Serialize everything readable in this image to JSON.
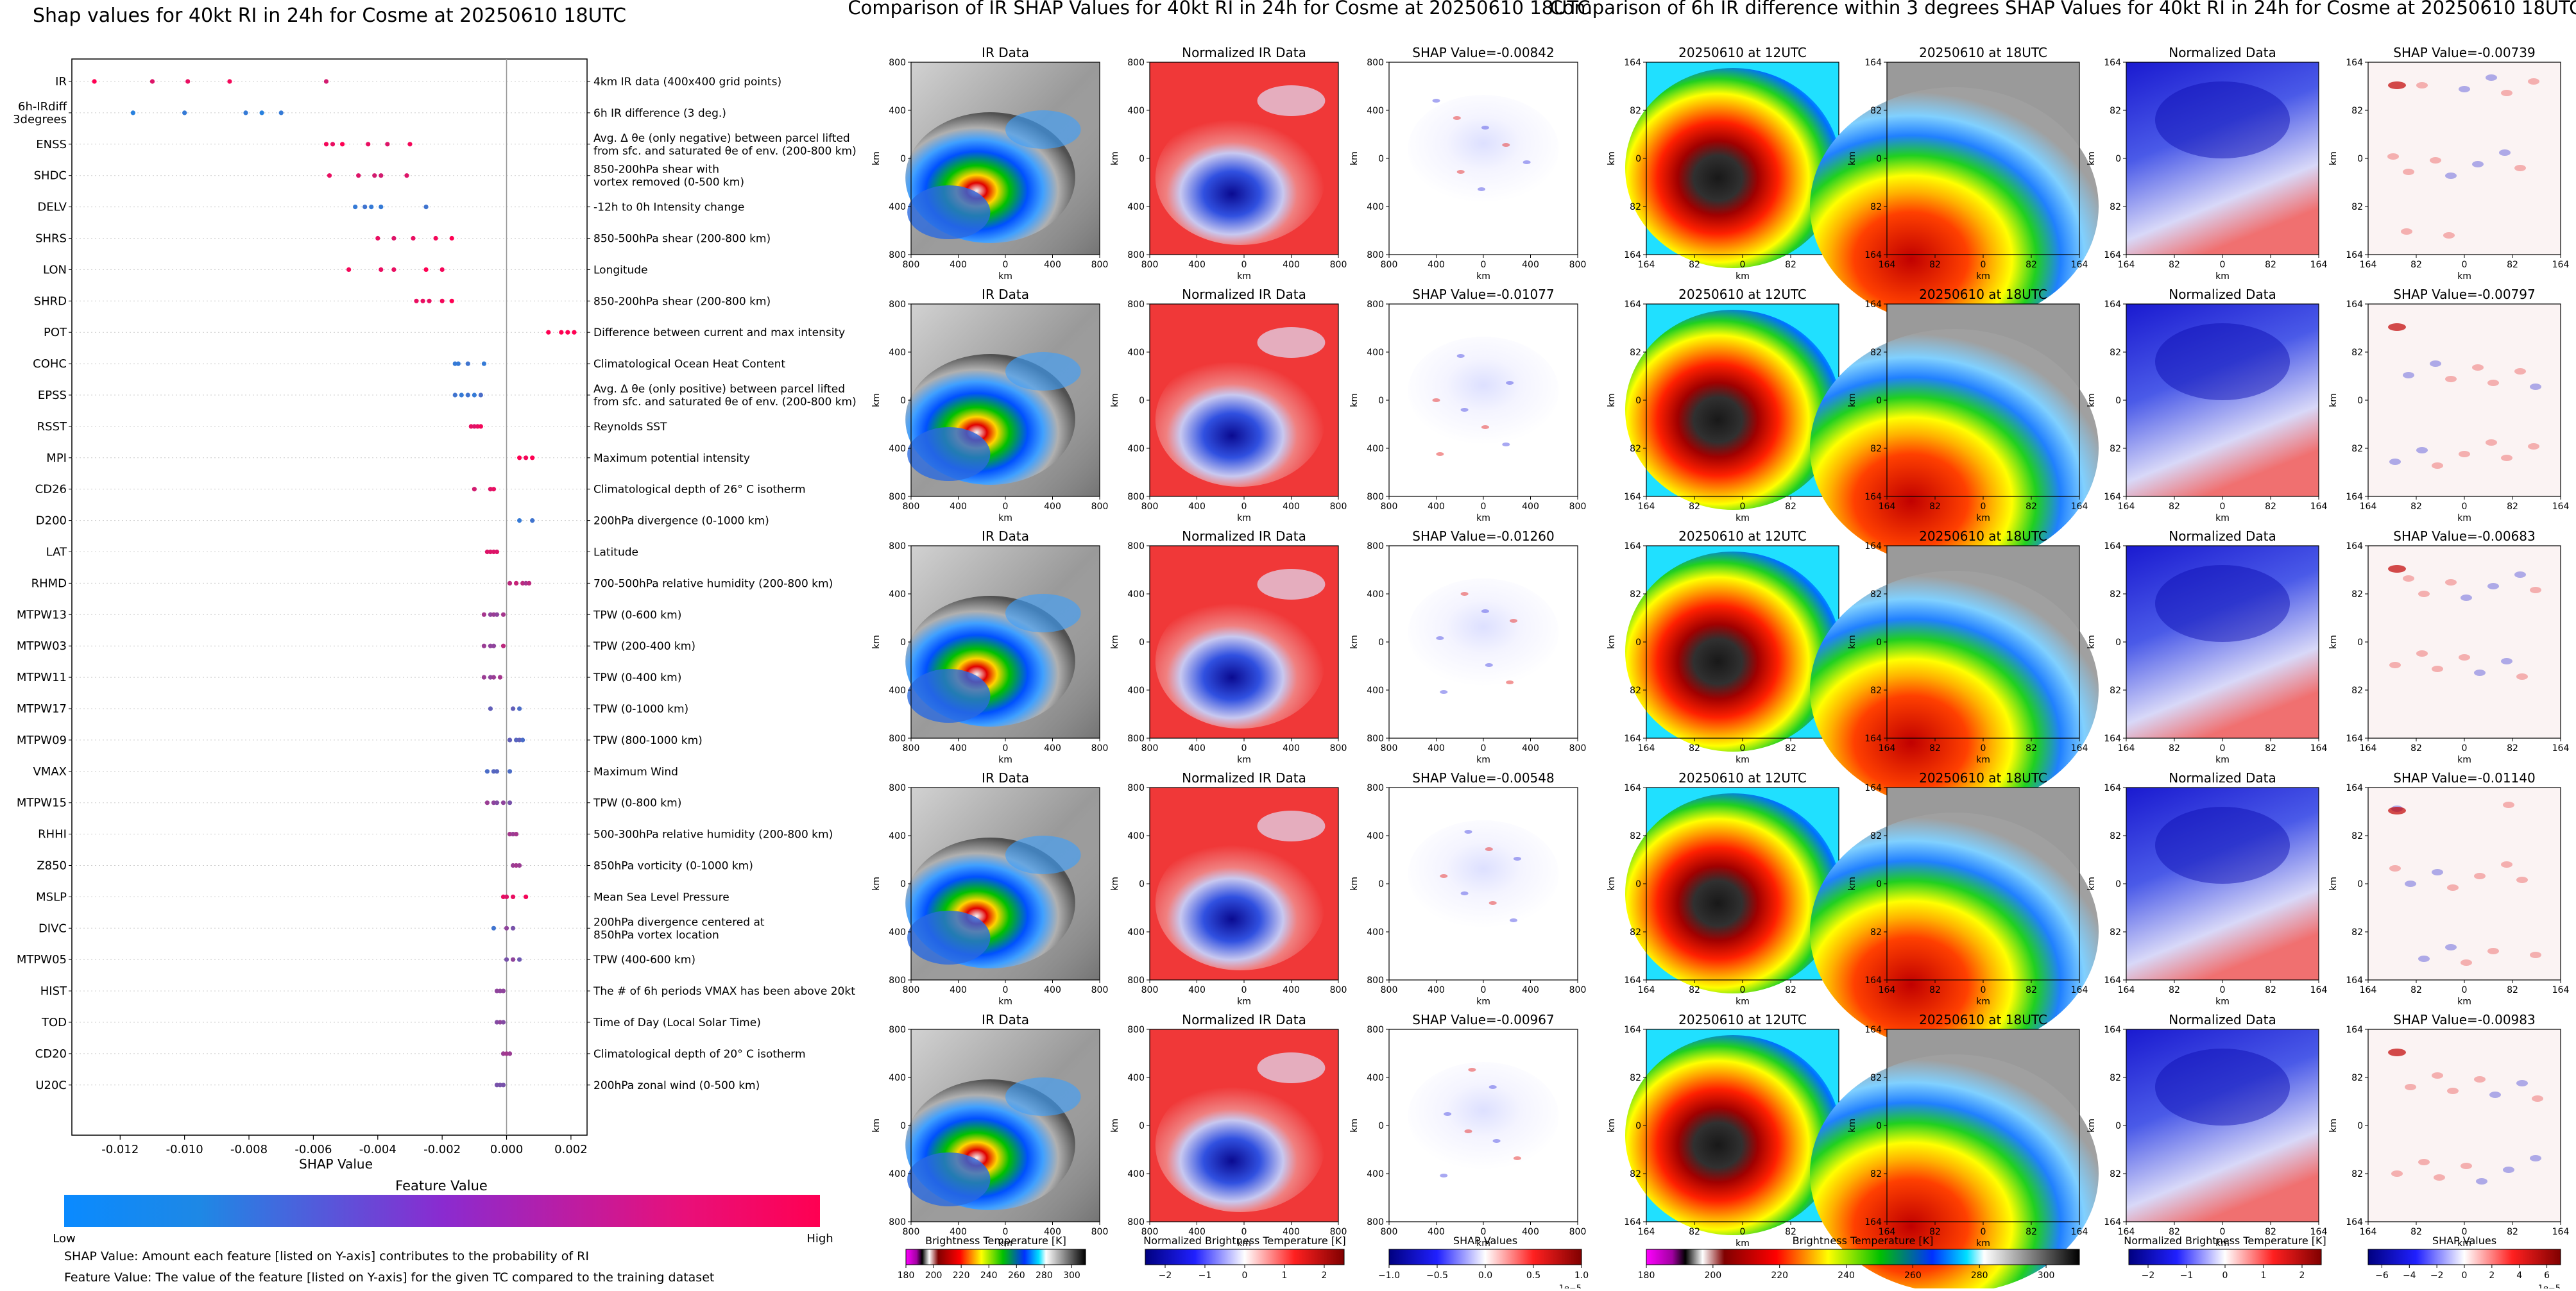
{
  "colors": {
    "shap_low": "#1e88e5",
    "shap_high": "#ff0052",
    "colorbar_feature": [
      "#1e88e5",
      "#7b2fd0",
      "#ff0052"
    ]
  },
  "shap_panel": {
    "title": "Shap values for 40kt RI in 24h for Cosme at 20250610 18UTC",
    "xlabel": "SHAP Value",
    "xticks": [
      "-0.012",
      "-0.010",
      "-0.008",
      "-0.006",
      "-0.004",
      "-0.002",
      "0.000",
      "0.002"
    ],
    "colorbar_title": "Feature Value",
    "colorbar_low": "Low",
    "colorbar_high": "High",
    "footnote1": "SHAP Value: Amount each feature [listed on Y-axis] contributes to the probability of RI",
    "footnote2": "Feature Value: The value of the feature [listed on Y-axis] for the given TC compared to the training dataset"
  },
  "chart_data": [
    {
      "type": "scatter",
      "title": "Shap values for 40kt RI in 24h for Cosme at 20250610 18UTC",
      "xlabel": "SHAP Value",
      "xlim": [
        -0.0135,
        0.0025
      ],
      "features": [
        {
          "name": "IR",
          "desc": "4km IR data (400x400 grid points)",
          "pts": [
            [
              -0.0128,
              1
            ],
            [
              -0.011,
              0.85
            ],
            [
              -0.0099,
              0.9
            ],
            [
              -0.0086,
              0.95
            ],
            [
              -0.0056,
              0.8
            ]
          ]
        },
        {
          "name": "6h-IRdiff\n3degrees",
          "desc": "6h IR difference (3 deg.)",
          "pts": [
            [
              -0.0116,
              0.05
            ],
            [
              -0.01,
              0.1
            ],
            [
              -0.0081,
              0.1
            ],
            [
              -0.0076,
              0.05
            ],
            [
              -0.007,
              0.1
            ]
          ]
        },
        {
          "name": "ENSS",
          "desc": "Avg. Δ θe (only negative) between parcel lifted\nfrom sfc. and saturated θe of env. (200-800 km)",
          "pts": [
            [
              -0.0056,
              0.95
            ],
            [
              -0.0054,
              0.9
            ],
            [
              -0.0051,
              1
            ],
            [
              -0.0043,
              0.9
            ],
            [
              -0.0037,
              0.85
            ],
            [
              -0.003,
              0.95
            ]
          ]
        },
        {
          "name": "SHDC",
          "desc": "850-200hPa shear with\nvortex removed (0-500 km)",
          "pts": [
            [
              -0.0055,
              0.9
            ],
            [
              -0.0046,
              0.85
            ],
            [
              -0.0041,
              0.8
            ],
            [
              -0.0039,
              0.8
            ],
            [
              -0.0031,
              0.85
            ]
          ]
        },
        {
          "name": "DELV",
          "desc": "-12h to 0h Intensity change",
          "pts": [
            [
              -0.0047,
              0.1
            ],
            [
              -0.0044,
              0.15
            ],
            [
              -0.0042,
              0.1
            ],
            [
              -0.0039,
              0.1
            ],
            [
              -0.0025,
              0.15
            ]
          ]
        },
        {
          "name": "SHRS",
          "desc": "850-500hPa shear (200-800 km)",
          "pts": [
            [
              -0.004,
              0.9
            ],
            [
              -0.0035,
              0.85
            ],
            [
              -0.0029,
              0.9
            ],
            [
              -0.0022,
              0.95
            ],
            [
              -0.0017,
              1
            ]
          ]
        },
        {
          "name": "LON",
          "desc": "Longitude",
          "pts": [
            [
              -0.0049,
              0.95
            ],
            [
              -0.0039,
              0.9
            ],
            [
              -0.0035,
              0.9
            ],
            [
              -0.0025,
              1
            ],
            [
              -0.002,
              0.95
            ]
          ]
        },
        {
          "name": "SHRD",
          "desc": "850-200hPa shear (200-800 km)",
          "pts": [
            [
              -0.0028,
              0.9
            ],
            [
              -0.0026,
              0.9
            ],
            [
              -0.0024,
              0.9
            ],
            [
              -0.002,
              0.95
            ],
            [
              -0.0017,
              1
            ]
          ]
        },
        {
          "name": "POT",
          "desc": "Difference between current and max intensity",
          "pts": [
            [
              0.0013,
              1
            ],
            [
              0.0017,
              1
            ],
            [
              0.0019,
              1
            ],
            [
              0.0021,
              1
            ]
          ]
        },
        {
          "name": "COHC",
          "desc": "Climatological Ocean Heat Content",
          "pts": [
            [
              -0.0016,
              0.1
            ],
            [
              -0.0015,
              0.1
            ],
            [
              -0.0012,
              0.15
            ],
            [
              -0.0007,
              0.1
            ]
          ]
        },
        {
          "name": "EPSS",
          "desc": "Avg. Δ θe (only positive) between parcel lifted\nfrom sfc. and saturated θe of env. (200-800 km)",
          "pts": [
            [
              -0.0016,
              0.15
            ],
            [
              -0.0014,
              0.1
            ],
            [
              -0.0012,
              0.15
            ],
            [
              -0.001,
              0.1
            ],
            [
              -0.0008,
              0.2
            ]
          ]
        },
        {
          "name": "RSST",
          "desc": "Reynolds SST",
          "pts": [
            [
              -0.0011,
              0.9
            ],
            [
              -0.001,
              0.85
            ],
            [
              -0.0009,
              0.9
            ],
            [
              -0.0008,
              0.95
            ]
          ]
        },
        {
          "name": "MPI",
          "desc": "Maximum potential intensity",
          "pts": [
            [
              0.0004,
              1
            ],
            [
              0.0006,
              0.95
            ],
            [
              0.0008,
              1
            ]
          ]
        },
        {
          "name": "CD26",
          "desc": "Climatological depth of 26° C isotherm",
          "pts": [
            [
              -0.001,
              0.8
            ],
            [
              -0.0005,
              0.85
            ],
            [
              -0.0004,
              0.9
            ]
          ]
        },
        {
          "name": "D200",
          "desc": "200hPa divergence (0-1000 km)",
          "pts": [
            [
              0.0004,
              0.1
            ],
            [
              0.0008,
              0.15
            ]
          ]
        },
        {
          "name": "LAT",
          "desc": "Latitude",
          "pts": [
            [
              -0.0006,
              0.85
            ],
            [
              -0.0005,
              0.85
            ],
            [
              -0.0004,
              0.85
            ],
            [
              -0.0003,
              0.85
            ]
          ]
        },
        {
          "name": "RHMD",
          "desc": "700-500hPa relative humidity (200-800 km)",
          "pts": [
            [
              0.0001,
              0.7
            ],
            [
              0.0003,
              0.75
            ],
            [
              0.0005,
              0.7
            ],
            [
              0.0006,
              0.6
            ],
            [
              0.0007,
              0.7
            ]
          ]
        },
        {
          "name": "MTPW13",
          "desc": "TPW (0-600 km)",
          "pts": [
            [
              -0.0007,
              0.6
            ],
            [
              -0.0005,
              0.5
            ],
            [
              -0.0004,
              0.55
            ],
            [
              -0.0003,
              0.5
            ],
            [
              -0.0001,
              0.6
            ]
          ]
        },
        {
          "name": "MTPW03",
          "desc": "TPW (200-400 km)",
          "pts": [
            [
              -0.0007,
              0.55
            ],
            [
              -0.0005,
              0.5
            ],
            [
              -0.0004,
              0.5
            ],
            [
              -0.0001,
              0.7
            ]
          ]
        },
        {
          "name": "MTPW11",
          "desc": "TPW (0-400 km)",
          "pts": [
            [
              -0.0007,
              0.55
            ],
            [
              -0.0005,
              0.5
            ],
            [
              -0.0004,
              0.55
            ],
            [
              -0.0002,
              0.6
            ]
          ]
        },
        {
          "name": "MTPW17",
          "desc": "TPW (0-1000 km)",
          "pts": [
            [
              -0.0005,
              0.3
            ],
            [
              0.0002,
              0.3
            ],
            [
              0.0004,
              0.2
            ]
          ]
        },
        {
          "name": "MTPW09",
          "desc": "TPW (800-1000 km)",
          "pts": [
            [
              0.0001,
              0.3
            ],
            [
              0.0003,
              0.25
            ],
            [
              0.0004,
              0.3
            ],
            [
              0.0005,
              0.2
            ]
          ]
        },
        {
          "name": "VMAX",
          "desc": "Maximum Wind",
          "pts": [
            [
              -0.0006,
              0.2
            ],
            [
              -0.0004,
              0.25
            ],
            [
              -0.0003,
              0.25
            ],
            [
              0.0001,
              0.2
            ]
          ]
        },
        {
          "name": "MTPW15",
          "desc": "TPW (0-800 km)",
          "pts": [
            [
              -0.0006,
              0.55
            ],
            [
              -0.0004,
              0.5
            ],
            [
              -0.0003,
              0.45
            ],
            [
              -0.0001,
              0.5
            ],
            [
              0.0001,
              0.4
            ]
          ]
        },
        {
          "name": "RHHI",
          "desc": "500-300hPa relative humidity (200-800 km)",
          "pts": [
            [
              0.0001,
              0.6
            ],
            [
              0.0002,
              0.55
            ],
            [
              0.0003,
              0.6
            ]
          ]
        },
        {
          "name": "Z850",
          "desc": "850hPa vorticity (0-1000 km)",
          "pts": [
            [
              0.0002,
              0.55
            ],
            [
              0.0003,
              0.6
            ],
            [
              0.0004,
              0.55
            ]
          ]
        },
        {
          "name": "MSLP",
          "desc": "Mean Sea Level Pressure",
          "pts": [
            [
              -0.0001,
              0.9
            ],
            [
              0.0,
              0.85
            ],
            [
              0.0002,
              0.9
            ],
            [
              0.0006,
              0.95
            ]
          ]
        },
        {
          "name": "DIVC",
          "desc": "200hPa divergence centered at\n850hPa vortex location",
          "pts": [
            [
              -0.0004,
              0.15
            ],
            [
              0.0,
              0.5
            ],
            [
              0.0002,
              0.4
            ]
          ]
        },
        {
          "name": "MTPW05",
          "desc": "TPW (400-600 km)",
          "pts": [
            [
              0.0,
              0.4
            ],
            [
              0.0002,
              0.5
            ],
            [
              0.0004,
              0.35
            ]
          ]
        },
        {
          "name": "HIST",
          "desc": "The # of 6h periods VMAX has been above 20kt",
          "pts": [
            [
              -0.0003,
              0.5
            ],
            [
              -0.0002,
              0.5
            ],
            [
              -0.0001,
              0.5
            ]
          ]
        },
        {
          "name": "TOD",
          "desc": "Time of Day (Local Solar Time)",
          "pts": [
            [
              -0.0003,
              0.45
            ],
            [
              -0.0002,
              0.5
            ],
            [
              -0.0001,
              0.45
            ]
          ]
        },
        {
          "name": "CD20",
          "desc": "Climatological depth of 20° C isotherm",
          "pts": [
            [
              -0.0001,
              0.55
            ],
            [
              0.0,
              0.6
            ],
            [
              0.0001,
              0.55
            ]
          ]
        },
        {
          "name": "U20C",
          "desc": "200hPa zonal wind (0-500 km)",
          "pts": [
            [
              -0.0003,
              0.4
            ],
            [
              -0.0002,
              0.4
            ],
            [
              -0.0001,
              0.4
            ]
          ]
        }
      ]
    }
  ],
  "ir_group": {
    "title": "Comparison of IR SHAP Values for 40kt RI in 24h for Cosme at 20250610 18UTC",
    "col_titles": [
      "IR Data",
      "Normalized IR Data"
    ],
    "shap_titles": [
      "SHAP Value=-0.00842",
      "SHAP Value=-0.01077",
      "SHAP Value=-0.01260",
      "SHAP Value=-0.00548",
      "SHAP Value=-0.00967"
    ],
    "axis_label": "km",
    "xticks": [
      "800",
      "400",
      "0",
      "400",
      "800"
    ],
    "yticks": [
      "800",
      "400",
      "0",
      "400",
      "800"
    ],
    "colorbars": [
      {
        "title": "Brightness Temperature [K]",
        "ticks": [
          "180",
          "200",
          "220",
          "240",
          "260",
          "280",
          "300"
        ],
        "min": 180,
        "max": 310
      },
      {
        "title": "Normalized Brightness Temperature [K]",
        "ticks": [
          "−2",
          "−1",
          "0",
          "1",
          "2"
        ],
        "min": -2.5,
        "max": 2.5
      },
      {
        "title": "SHAP Values",
        "ticks": [
          "−1.0",
          "−0.5",
          "0.0",
          "0.5",
          "1.0"
        ],
        "min": -1.0,
        "max": 1.0,
        "exponent": "1e−5"
      }
    ]
  },
  "diff_group": {
    "title": "Comparison of 6h IR difference within 3 degrees SHAP Values for 40kt RI in 24h for Cosme at 20250610 18UTC",
    "col_titles": [
      "20250610 at 12UTC",
      "20250610 at 18UTC",
      "Normalized Data"
    ],
    "shap_titles": [
      "SHAP Value=-0.00739",
      "SHAP Value=-0.00797",
      "SHAP Value=-0.00683",
      "SHAP Value=-0.01140",
      "SHAP Value=-0.00983"
    ],
    "axis_label": "km",
    "xticks": [
      "164",
      "82",
      "0",
      "82",
      "164"
    ],
    "yticks": [
      "164",
      "82",
      "0",
      "82",
      "164"
    ],
    "colorbars": [
      {
        "title": "Brightness Temperature [K]",
        "ticks": [
          "180",
          "200",
          "220",
          "240",
          "260",
          "280",
          "300"
        ],
        "min": 180,
        "max": 310
      },
      {
        "title": "Normalized Brightness Temperature [K]",
        "ticks": [
          "−2",
          "−1",
          "0",
          "1",
          "2"
        ],
        "min": -2.5,
        "max": 2.5
      },
      {
        "title": "SHAP Values",
        "ticks": [
          "−6",
          "−4",
          "−2",
          "0",
          "2",
          "4",
          "6"
        ],
        "min": -7,
        "max": 7,
        "exponent": "1e−5"
      }
    ]
  }
}
